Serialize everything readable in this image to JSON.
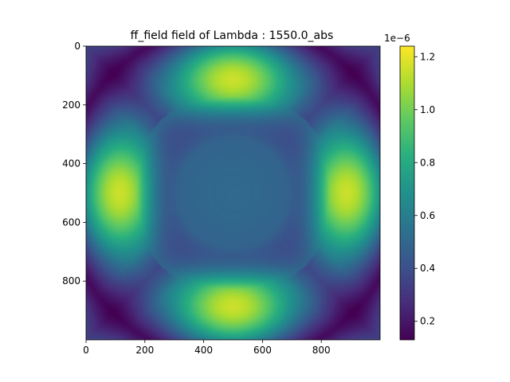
{
  "chart_data": {
    "type": "heatmap",
    "title": "ff_field field of Lambda : 1550.0_abs",
    "xlabel": "",
    "ylabel": "",
    "xlim": [
      0,
      1000
    ],
    "ylim": [
      1000,
      0
    ],
    "x_ticks": [
      "0",
      "200",
      "400",
      "600",
      "800"
    ],
    "y_ticks": [
      "0",
      "200",
      "400",
      "600",
      "800"
    ],
    "colormap": "viridis",
    "colorbar": {
      "range": [
        0.13,
        1.24
      ],
      "ticks": [
        "0.2",
        "0.4",
        "0.6",
        "0.8",
        "1.0",
        "1.2"
      ],
      "exponent_label": "1e−6"
    },
    "grid": false
  }
}
